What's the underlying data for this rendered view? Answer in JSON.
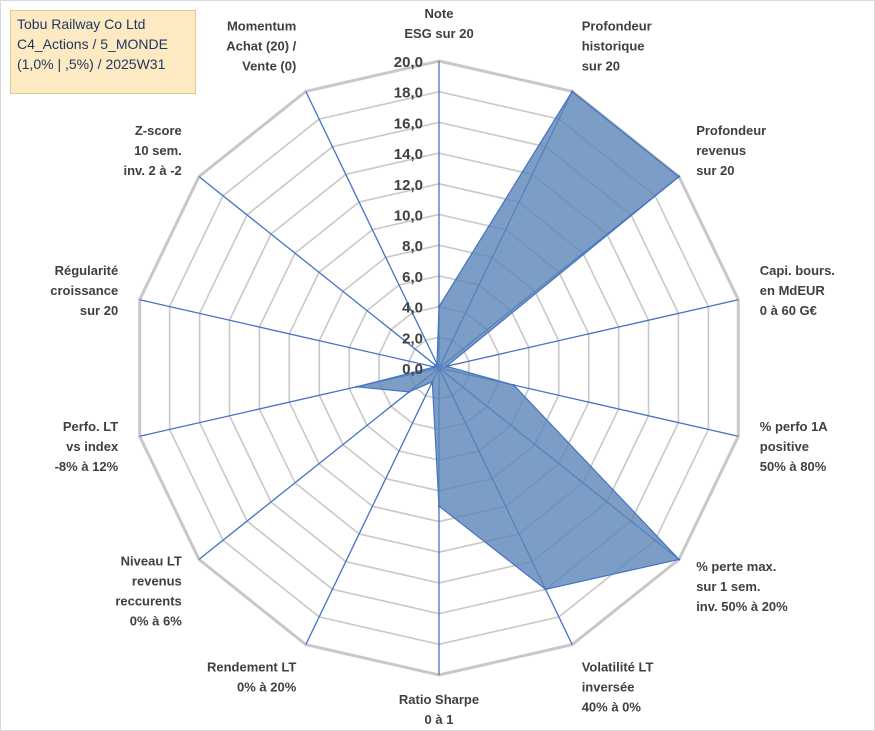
{
  "title_box": {
    "line1": "Tobu Railway Co Ltd",
    "line2": "C4_Actions / 5_MONDE",
    "line3": "(1,0% | ,5%) / 2025W31"
  },
  "colors": {
    "fill": "#5b86b8",
    "stroke": "#4472c4",
    "grid": "#c8c8c8",
    "title_bg": "#fde9c2",
    "title_text": "#1f3864"
  },
  "chart_data": {
    "type": "radar",
    "rmin": 0,
    "rmax": 20,
    "tick_step": 2,
    "tick_labels": [
      "0,0",
      "2,0",
      "4,0",
      "6,0",
      "8,0",
      "10,0",
      "12,0",
      "14,0",
      "16,0",
      "18,0",
      "20,0"
    ],
    "grid": true,
    "categories": [
      [
        "Note",
        "ESG sur 20"
      ],
      [
        "Profondeur",
        "historique",
        "sur 20"
      ],
      [
        "Profondeur",
        "revenus",
        "sur 20"
      ],
      [
        "Capi. bours.",
        "en MdEUR",
        "0 à 60 G€"
      ],
      [
        "% perfo 1A",
        "positive",
        "50% à 80%"
      ],
      [
        "% perte max.",
        "sur 1 sem.",
        "inv. 50% à 20%"
      ],
      [
        "Volatilité LT",
        "inversée",
        "40% à 0%"
      ],
      [
        "Ratio Sharpe",
        "0 à 1"
      ],
      [
        "Rendement LT",
        "0% à 20%"
      ],
      [
        "Niveau LT",
        "revenus",
        "reccurents",
        "0% à 6%"
      ],
      [
        "Perfo. LT",
        "vs index",
        "-8% à 12%"
      ],
      [
        "Régularité",
        "croissance",
        "sur 20"
      ],
      [
        "Z-score",
        "10 sem.",
        "inv. 2 à -2"
      ],
      [
        "Momentum",
        "Achat (20) /",
        "Vente (0)"
      ]
    ],
    "series": [
      {
        "values": [
          4.0,
          20.0,
          20.0,
          0.5,
          5.0,
          20.0,
          16.0,
          9.0,
          1.0,
          2.5,
          5.5,
          0.3,
          0.3,
          0.3
        ]
      }
    ]
  }
}
